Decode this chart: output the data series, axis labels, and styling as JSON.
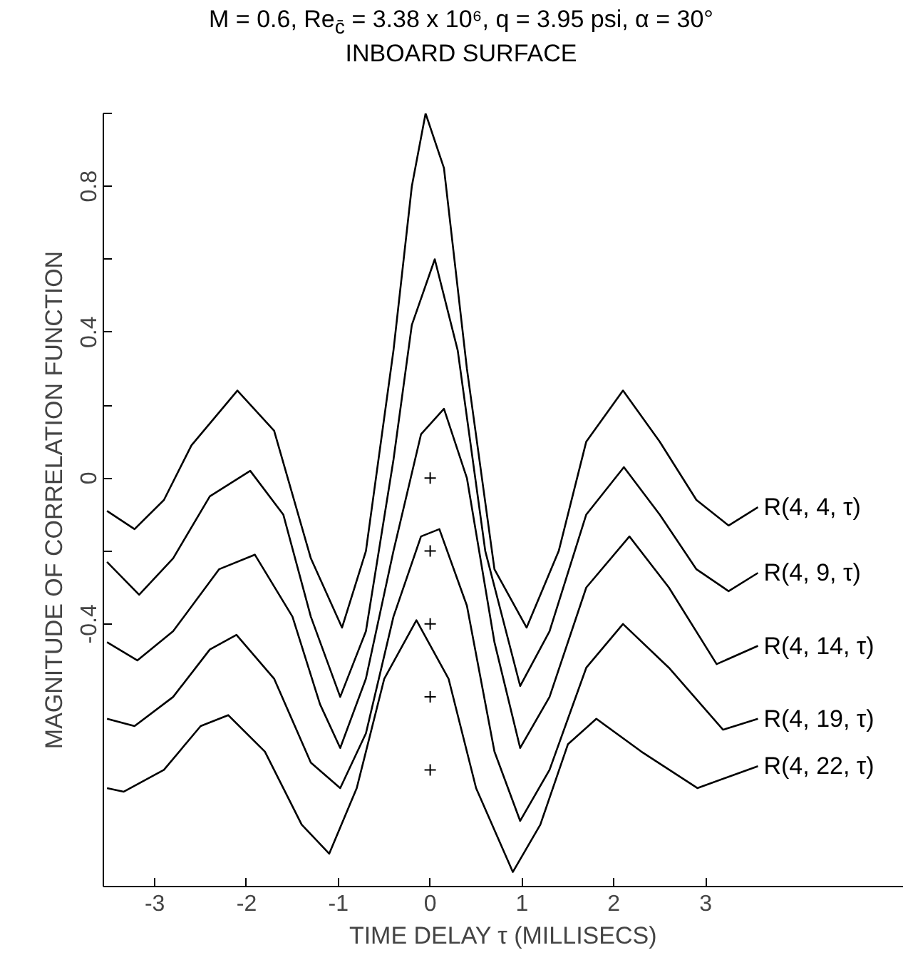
{
  "chart_data": {
    "type": "line",
    "title": "M = 0.6, Re$_{c̄}$ = 3.38 x 10⁶, q = 3.95 psi, α = 30°",
    "subtitle": "INBOARD SURFACE",
    "xlabel": "TIME DELAY τ (MILLISECS)",
    "ylabel": "MAGNITUDE OF CORRELATION FUNCTION",
    "xlim": [
      -3.56,
      5.15
    ],
    "ylim": [
      -1.12,
      1.0
    ],
    "xticks": [
      -3,
      -2,
      -1,
      0,
      1,
      2,
      3
    ],
    "yticks": [
      {
        "value": 1.0,
        "label": null
      },
      0.8,
      {
        "value": 0.6,
        "label": null
      },
      0.4,
      {
        "value": 0.2,
        "label": null
      },
      0,
      {
        "value": -0.2,
        "label": null
      },
      -0.4
    ],
    "grid": false,
    "line_style": "solid",
    "series": [
      {
        "name": "R(4, 4, τ)",
        "color": "#000000",
        "x": [
          -3.52,
          -3.22,
          -2.9,
          -2.6,
          -2.1,
          -1.7,
          -1.3,
          -0.96,
          -0.7,
          -0.4,
          -0.2,
          -0.05,
          0.15,
          0.4,
          0.7,
          1.05,
          1.4,
          1.7,
          2.1,
          2.5,
          2.9,
          3.25,
          3.57
        ],
        "values": [
          -0.09,
          -0.14,
          -0.06,
          0.09,
          0.24,
          0.13,
          -0.22,
          -0.41,
          -0.2,
          0.35,
          0.8,
          1.0,
          0.85,
          0.3,
          -0.25,
          -0.41,
          -0.2,
          0.1,
          0.24,
          0.1,
          -0.06,
          -0.13,
          -0.08
        ]
      },
      {
        "name": "R(4, 9, τ)",
        "color": "#000000",
        "x": [
          -3.52,
          -3.17,
          -2.8,
          -2.4,
          -1.96,
          -1.6,
          -1.3,
          -0.98,
          -0.7,
          -0.4,
          -0.2,
          0.05,
          0.3,
          0.6,
          0.98,
          1.3,
          1.7,
          2.11,
          2.5,
          2.9,
          3.25,
          3.57
        ],
        "values": [
          -0.23,
          -0.32,
          -0.22,
          -0.05,
          0.02,
          -0.1,
          -0.38,
          -0.6,
          -0.42,
          0.05,
          0.42,
          0.6,
          0.35,
          -0.2,
          -0.57,
          -0.42,
          -0.1,
          0.03,
          -0.1,
          -0.25,
          -0.31,
          -0.26
        ]
      },
      {
        "name": "R(4, 14, τ)",
        "color": "#000000",
        "x": [
          -3.52,
          -3.19,
          -2.8,
          -2.3,
          -1.91,
          -1.5,
          -1.2,
          -0.98,
          -0.7,
          -0.4,
          -0.1,
          0.15,
          0.4,
          0.7,
          0.98,
          1.3,
          1.7,
          2.17,
          2.6,
          3.12,
          3.57
        ],
        "values": [
          -0.45,
          -0.5,
          -0.42,
          -0.25,
          -0.21,
          -0.38,
          -0.62,
          -0.74,
          -0.55,
          -0.2,
          0.12,
          0.19,
          0.0,
          -0.45,
          -0.74,
          -0.6,
          -0.3,
          -0.16,
          -0.3,
          -0.51,
          -0.46
        ]
      },
      {
        "name": "R(4, 19, τ)",
        "color": "#000000",
        "x": [
          -3.52,
          -3.22,
          -2.8,
          -2.4,
          -2.11,
          -1.7,
          -1.3,
          -0.98,
          -0.7,
          -0.4,
          -0.1,
          0.1,
          0.4,
          0.7,
          0.98,
          1.3,
          1.7,
          2.1,
          2.6,
          3.19,
          3.57
        ],
        "values": [
          -0.66,
          -0.68,
          -0.6,
          -0.47,
          -0.43,
          -0.55,
          -0.78,
          -0.85,
          -0.7,
          -0.38,
          -0.16,
          -0.14,
          -0.35,
          -0.75,
          -0.94,
          -0.8,
          -0.52,
          -0.4,
          -0.52,
          -0.69,
          -0.66
        ]
      },
      {
        "name": "R(4, 22, τ)",
        "color": "#000000",
        "x": [
          -3.52,
          -3.34,
          -2.9,
          -2.5,
          -2.2,
          -1.8,
          -1.4,
          -1.1,
          -0.8,
          -0.5,
          -0.15,
          0.2,
          0.5,
          0.9,
          1.2,
          1.5,
          1.81,
          2.3,
          2.91,
          3.57
        ],
        "values": [
          -0.85,
          -0.86,
          -0.8,
          -0.68,
          -0.65,
          -0.75,
          -0.95,
          -1.03,
          -0.85,
          -0.55,
          -0.39,
          -0.55,
          -0.85,
          -1.08,
          -0.95,
          -0.73,
          -0.66,
          -0.75,
          -0.85,
          -0.79
        ]
      },
      {
        "type": "scatter",
        "marker": "cross",
        "color": "#000000",
        "x": [
          0,
          0,
          0,
          0,
          0
        ],
        "values": [
          0,
          -0.2,
          -0.4,
          -0.6,
          -0.8
        ]
      }
    ]
  }
}
